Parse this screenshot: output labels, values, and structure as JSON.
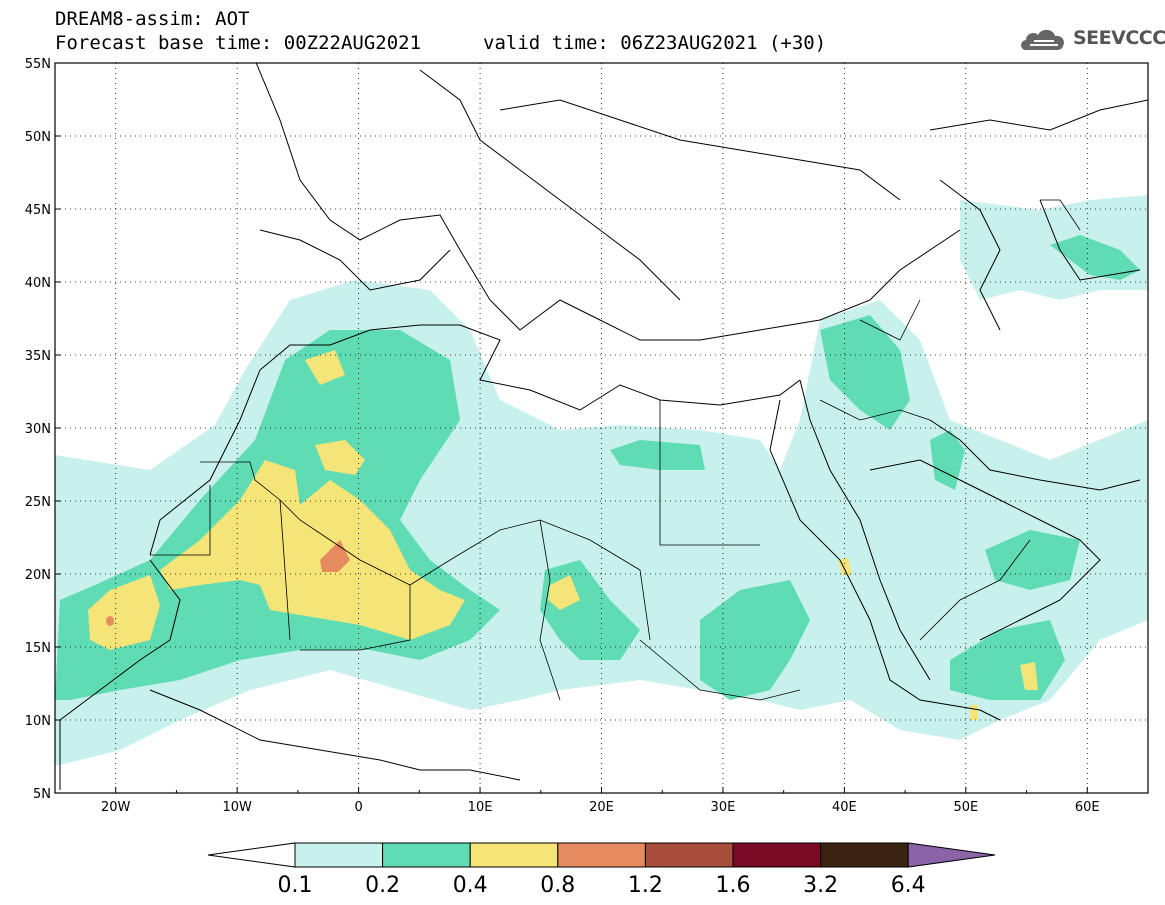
{
  "header": {
    "model_line": "DREAM8-assim: AOT",
    "base_time": "Forecast base time: 00Z22AUG2021",
    "valid_time": "valid time: 06Z23AUG2021 (+30)"
  },
  "logo": {
    "text": "SEEVCCC",
    "icon": "cloud-logo-icon"
  },
  "map": {
    "lat_labels": [
      "55N",
      "50N",
      "45N",
      "40N",
      "35N",
      "30N",
      "25N",
      "20N",
      "15N",
      "10N",
      "5N"
    ],
    "lon_labels": [
      "20W",
      "10W",
      "0",
      "10E",
      "20E",
      "30E",
      "40E",
      "50E",
      "60E"
    ],
    "lat_range": [
      5,
      55
    ],
    "lon_range": [
      -25,
      65
    ],
    "gridlines": "dotted"
  },
  "colorbar": {
    "levels": [
      "0.1",
      "0.2",
      "0.4",
      "0.8",
      "1.2",
      "1.6",
      "3.2",
      "6.4"
    ],
    "colors": [
      "#ffffff",
      "#c8f0ec",
      "#5fdcb4",
      "#f5e478",
      "#e68a60",
      "#a84c3c",
      "#7a0a26",
      "#3a2212",
      "#8b64a8"
    ]
  },
  "colors": {
    "c01": "#c8f0ec",
    "c02": "#5fdcb4",
    "c04": "#f5e478",
    "c08": "#e68a60"
  }
}
